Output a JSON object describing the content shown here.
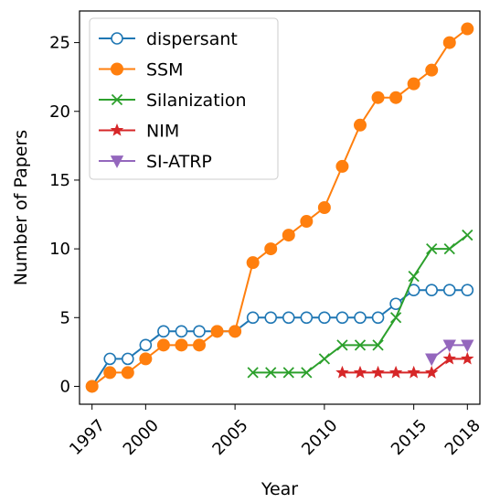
{
  "chart_data": {
    "type": "line",
    "xlabel": "Year",
    "ylabel": "Number of Papers",
    "xlim": [
      1996.3,
      2018.7
    ],
    "ylim": [
      -1.3,
      27.3
    ],
    "xticks": [
      1997,
      2000,
      2005,
      2010,
      2015,
      2018
    ],
    "yticks": [
      0,
      5,
      10,
      15,
      20,
      25
    ],
    "grid": false,
    "legend": "top-left",
    "series": [
      {
        "name": "dispersant",
        "color": "#1f77b4",
        "marker": "circle-open",
        "x": [
          1997,
          1998,
          1999,
          2000,
          2001,
          2002,
          2003,
          2004,
          2005,
          2006,
          2007,
          2008,
          2009,
          2010,
          2011,
          2012,
          2013,
          2014,
          2015,
          2016,
          2017,
          2018
        ],
        "y": [
          0,
          2,
          2,
          3,
          4,
          4,
          4,
          4,
          4,
          5,
          5,
          5,
          5,
          5,
          5,
          5,
          5,
          6,
          7,
          7,
          7,
          7
        ]
      },
      {
        "name": "SSM",
        "color": "#ff7f0e",
        "marker": "circle-filled",
        "x": [
          1997,
          1998,
          1999,
          2000,
          2001,
          2002,
          2003,
          2004,
          2005,
          2006,
          2007,
          2008,
          2009,
          2010,
          2011,
          2012,
          2013,
          2014,
          2015,
          2016,
          2017,
          2018
        ],
        "y": [
          0,
          1,
          1,
          2,
          3,
          3,
          3,
          4,
          4,
          9,
          10,
          11,
          12,
          13,
          16,
          19,
          21,
          21,
          22,
          23,
          25,
          26
        ]
      },
      {
        "name": "Silanization",
        "color": "#2ca02c",
        "marker": "x",
        "x": [
          2006,
          2007,
          2008,
          2009,
          2010,
          2011,
          2012,
          2013,
          2014,
          2015,
          2016,
          2017,
          2018
        ],
        "y": [
          1,
          1,
          1,
          1,
          2,
          3,
          3,
          3,
          5,
          8,
          10,
          10,
          11
        ]
      },
      {
        "name": "NIM",
        "color": "#d62728",
        "marker": "star",
        "x": [
          2011,
          2012,
          2013,
          2014,
          2015,
          2016,
          2017,
          2018
        ],
        "y": [
          1,
          1,
          1,
          1,
          1,
          1,
          2,
          2
        ]
      },
      {
        "name": "SI-ATRP",
        "color": "#9467bd",
        "marker": "triangle-down",
        "x": [
          2016,
          2017,
          2018
        ],
        "y": [
          2,
          3,
          3
        ]
      }
    ]
  }
}
